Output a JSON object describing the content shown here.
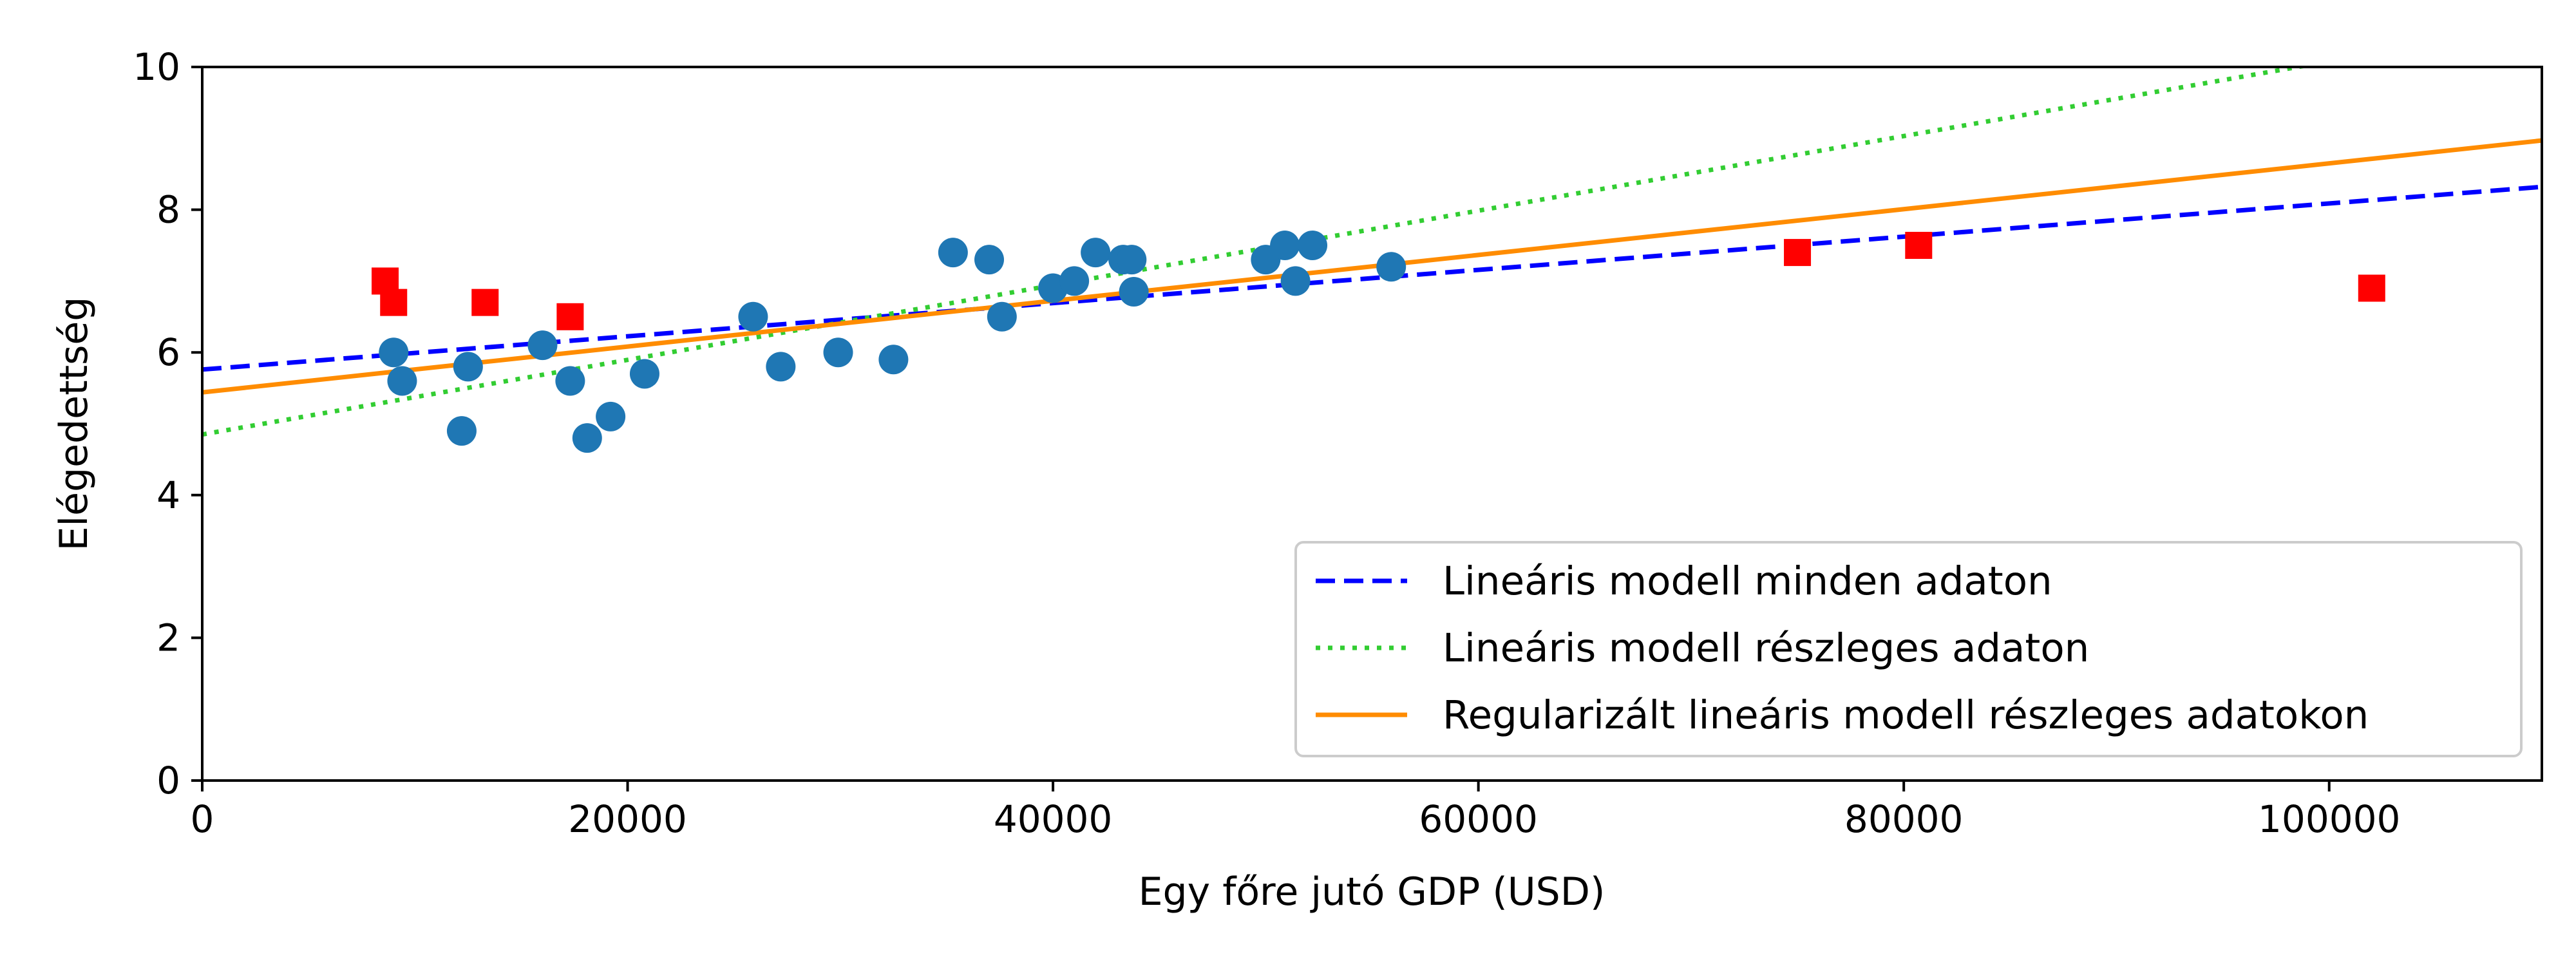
{
  "chart_data": {
    "type": "scatter",
    "title": "",
    "xlabel": "Egy főre jutó GDP (USD)",
    "ylabel": "Elégedettség",
    "xlim": [
      0,
      110000
    ],
    "ylim": [
      0,
      10
    ],
    "xticks": [
      0,
      20000,
      40000,
      60000,
      80000,
      100000
    ],
    "xtick_labels": [
      "0",
      "20000",
      "40000",
      "60000",
      "80000",
      "100000"
    ],
    "yticks": [
      0,
      2,
      4,
      6,
      8,
      10
    ],
    "ytick_labels": [
      "0",
      "2",
      "4",
      "6",
      "8",
      "10"
    ],
    "grid": false,
    "legend_position": "lower-right",
    "scatter_series": [
      {
        "marker": "circle",
        "color": "#1f77b4",
        "points": [
          [
            9000,
            6.0
          ],
          [
            9400,
            5.6
          ],
          [
            12200,
            4.9
          ],
          [
            12500,
            5.8
          ],
          [
            16000,
            6.1
          ],
          [
            17300,
            5.6
          ],
          [
            18100,
            4.8
          ],
          [
            19200,
            5.1
          ],
          [
            20800,
            5.7
          ],
          [
            25900,
            6.5
          ],
          [
            27200,
            5.8
          ],
          [
            29900,
            6.0
          ],
          [
            32500,
            5.9
          ],
          [
            35300,
            7.4
          ],
          [
            37000,
            7.3
          ],
          [
            37600,
            6.5
          ],
          [
            40000,
            6.9
          ],
          [
            41000,
            7.0
          ],
          [
            42000,
            7.4
          ],
          [
            43300,
            7.3
          ],
          [
            43700,
            7.3
          ],
          [
            43800,
            6.85
          ],
          [
            50000,
            7.3
          ],
          [
            50900,
            7.5
          ],
          [
            51400,
            7.0
          ],
          [
            52200,
            7.5
          ],
          [
            55900,
            7.2
          ]
        ]
      },
      {
        "marker": "square",
        "color": "#ff0000",
        "points": [
          [
            8600,
            7.0
          ],
          [
            9000,
            6.7
          ],
          [
            13300,
            6.7
          ],
          [
            17300,
            6.5
          ],
          [
            75000,
            7.4
          ],
          [
            80700,
            7.5
          ],
          [
            102000,
            6.9
          ]
        ]
      }
    ],
    "line_series": [
      {
        "name": "Lineáris modell minden adaton",
        "style": "dashed",
        "color": "#0000ff",
        "points": [
          [
            0,
            5.76
          ],
          [
            110000,
            8.32
          ]
        ]
      },
      {
        "name": "Lineáris modell részleges adaton",
        "style": "dotted",
        "color": "#32cd32",
        "points": [
          [
            0,
            4.85
          ],
          [
            110000,
            10.6
          ]
        ]
      },
      {
        "name": "Regularizált lineáris modell részleges adatokon",
        "style": "solid",
        "color": "#ff8c00",
        "points": [
          [
            0,
            5.44
          ],
          [
            110000,
            8.97
          ]
        ]
      }
    ]
  }
}
